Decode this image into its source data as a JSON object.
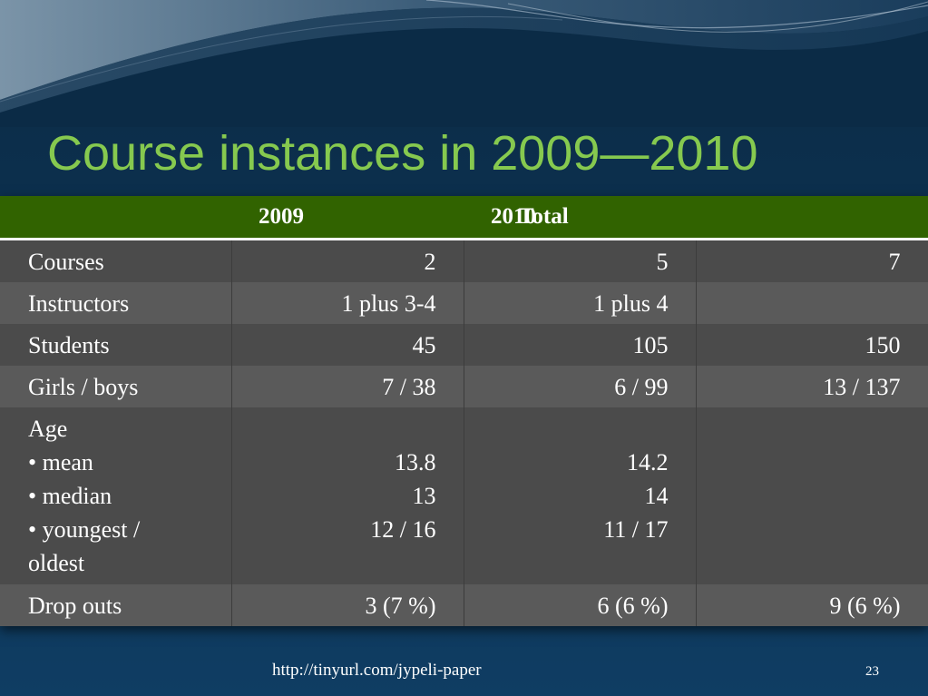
{
  "slide": {
    "title": "Course instances in 2009—2010",
    "footer_url": "http://tinyurl.com/jypeli-paper",
    "slide_number": "23"
  },
  "table": {
    "headers": [
      "",
      "2009",
      "2010",
      "Total"
    ],
    "rows": [
      {
        "label": "Courses",
        "values": [
          "2",
          "5",
          "7"
        ]
      },
      {
        "label": "Instructors",
        "values": [
          "1 plus 3-4",
          "1 plus 4",
          ""
        ]
      },
      {
        "label": "Students",
        "values": [
          "45",
          "105",
          "150"
        ]
      },
      {
        "label": "Girls / boys",
        "values": [
          "7 / 38",
          "6 / 99",
          "13 / 137"
        ]
      },
      {
        "label_lines": [
          "Age",
          "• mean",
          "• median",
          "• youngest /",
          "oldest"
        ],
        "col2009_lines": [
          "",
          "13.8",
          "13",
          "12 / 16"
        ],
        "col2010_lines": [
          "",
          "14.2",
          "14",
          "11 / 17"
        ]
      },
      {
        "label": "Drop outs",
        "values": [
          "3 (7 %)",
          "6 (6 %)",
          "9 (6 %)"
        ]
      }
    ]
  },
  "colors": {
    "title": "#86c94f",
    "header_bg": "#316300",
    "row_dark": "#4b4b4b",
    "row_light": "#5a5a5a",
    "background": "#0d3352"
  }
}
